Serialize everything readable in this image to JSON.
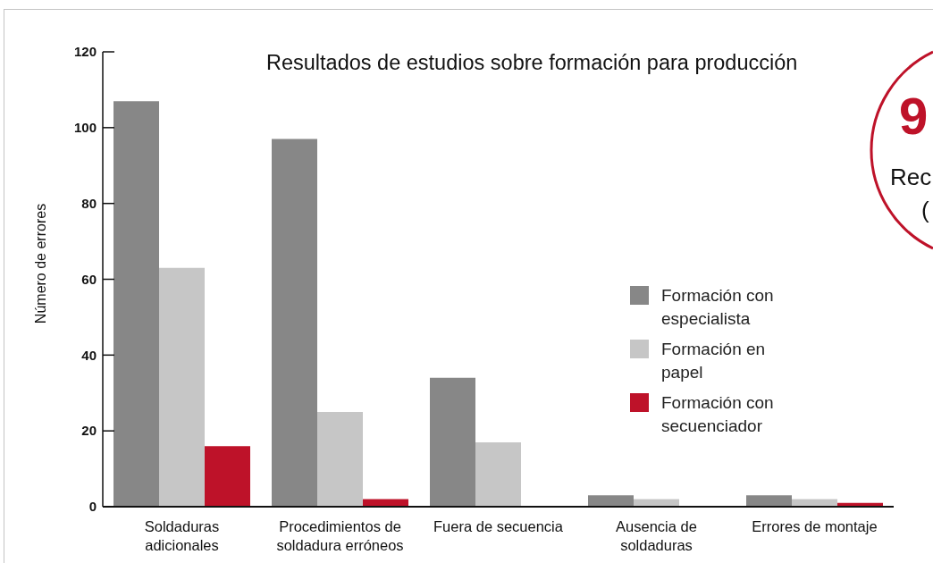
{
  "chart_data": {
    "type": "bar",
    "title": "Resultados de estudios sobre formación para producción",
    "ylabel": "Número de errores",
    "categories": [
      "Soldaduras adicionales",
      "Procedimientos de soldadura erróneos",
      "Fuera de secuencia",
      "Ausencia de soldaduras",
      "Errores de montaje"
    ],
    "series": [
      {
        "name": "Formación con especialista",
        "color": "#878787",
        "values": [
          107,
          97,
          34,
          3,
          3
        ]
      },
      {
        "name": "Formación en papel",
        "color": "#c6c6c6",
        "values": [
          63,
          25,
          17,
          2,
          2
        ]
      },
      {
        "name": "Formación con secuenciador",
        "color": "#be1229",
        "values": [
          16,
          2,
          null,
          null,
          1
        ]
      }
    ],
    "ylim": [
      0,
      120
    ],
    "yticks": [
      0,
      20,
      40,
      60,
      80,
      100,
      120
    ],
    "legend": "right",
    "annotations": [
      "9",
      "Rec",
      "("
    ]
  }
}
